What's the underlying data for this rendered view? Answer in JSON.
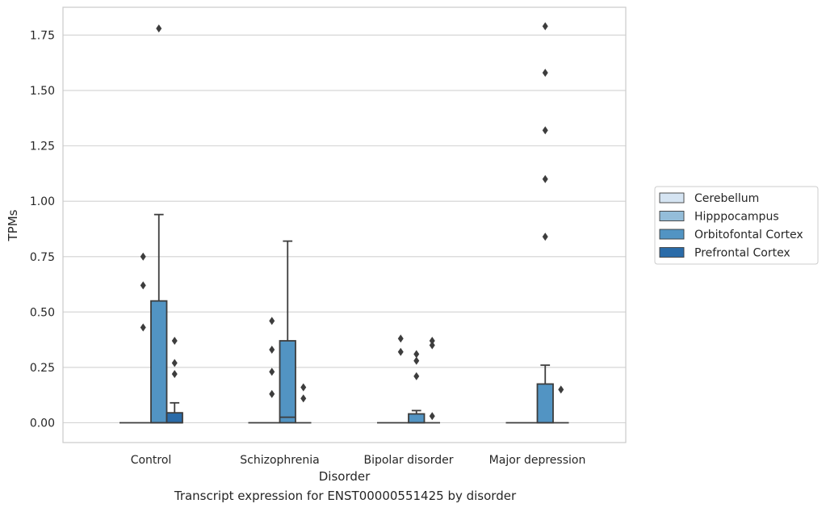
{
  "caption": "Transcript expression for ENST00000551425 by disorder",
  "chart_data": {
    "type": "box",
    "xlabel": "Disorder",
    "ylabel": "TPMs",
    "ylim": [
      -0.09,
      1.88
    ],
    "yticks": [
      "0.00",
      "0.25",
      "0.50",
      "0.75",
      "1.00",
      "1.25",
      "1.50",
      "1.75"
    ],
    "grid": true,
    "legend_position": "right",
    "categories": [
      "Control",
      "Schizophrenia",
      "Bipolar disorder",
      "Major depression"
    ],
    "series": [
      {
        "name": "Cerebellum",
        "color": "#d5e4f2",
        "boxes": [
          {
            "q1": 0,
            "median": 0,
            "q3": 0,
            "whisker_low": 0,
            "whisker_high": 0,
            "outliers": []
          },
          {
            "q1": 0,
            "median": 0,
            "q3": 0,
            "whisker_low": 0,
            "whisker_high": 0,
            "outliers": []
          },
          {
            "q1": 0,
            "median": 0,
            "q3": 0,
            "whisker_low": 0,
            "whisker_high": 0,
            "outliers": []
          },
          {
            "q1": 0,
            "median": 0,
            "q3": 0,
            "whisker_low": 0,
            "whisker_high": 0,
            "outliers": []
          }
        ]
      },
      {
        "name": "Hipppocampus",
        "color": "#94bdd9",
        "boxes": [
          {
            "q1": 0,
            "median": 0,
            "q3": 0,
            "whisker_low": 0,
            "whisker_high": 0,
            "outliers": [
              0.75,
              0.62,
              0.43
            ]
          },
          {
            "q1": 0,
            "median": 0,
            "q3": 0,
            "whisker_low": 0,
            "whisker_high": 0,
            "outliers": [
              0.33,
              0.23,
              0.13,
              0.46
            ]
          },
          {
            "q1": 0,
            "median": 0,
            "q3": 0,
            "whisker_low": 0,
            "whisker_high": 0,
            "outliers": [
              0.38,
              0.32
            ]
          },
          {
            "q1": 0,
            "median": 0,
            "q3": 0,
            "whisker_low": 0,
            "whisker_high": 0,
            "outliers": []
          }
        ]
      },
      {
        "name": "Orbitofontal Cortex",
        "color": "#5294c3",
        "boxes": [
          {
            "q1": 0,
            "median": 0,
            "q3": 0.55,
            "whisker_low": 0,
            "whisker_high": 0.94,
            "outliers": [
              1.78
            ]
          },
          {
            "q1": 0,
            "median": 0.025,
            "q3": 0.37,
            "whisker_low": 0,
            "whisker_high": 0.82,
            "outliers": []
          },
          {
            "q1": 0,
            "median": 0,
            "q3": 0.04,
            "whisker_low": 0,
            "whisker_high": 0.055,
            "outliers": [
              0.31,
              0.28,
              0.21
            ]
          },
          {
            "q1": 0,
            "median": 0,
            "q3": 0.175,
            "whisker_low": 0,
            "whisker_high": 0.26,
            "outliers": [
              1.79,
              1.58,
              1.32,
              1.1,
              0.84
            ]
          }
        ]
      },
      {
        "name": "Prefrontal Cortex",
        "color": "#2a6ba8",
        "boxes": [
          {
            "q1": 0,
            "median": 0,
            "q3": 0.045,
            "whisker_low": 0,
            "whisker_high": 0.09,
            "outliers": [
              0.37,
              0.27,
              0.22
            ]
          },
          {
            "q1": 0,
            "median": 0,
            "q3": 0,
            "whisker_low": 0,
            "whisker_high": 0,
            "outliers": [
              0.16,
              0.11
            ]
          },
          {
            "q1": 0,
            "median": 0,
            "q3": 0,
            "whisker_low": 0,
            "whisker_high": 0,
            "outliers": [
              0.37,
              0.35,
              0.03
            ]
          },
          {
            "q1": 0,
            "median": 0,
            "q3": 0,
            "whisker_low": 0,
            "whisker_high": 0,
            "outliers": [
              0.15
            ]
          }
        ]
      }
    ]
  }
}
